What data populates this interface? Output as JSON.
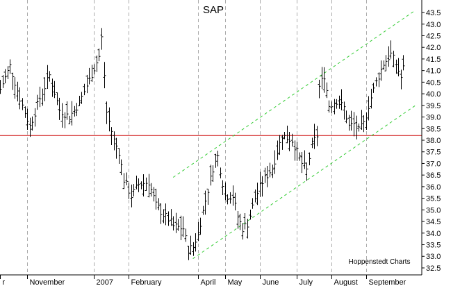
{
  "chart_data": {
    "type": "bar",
    "subtype": "ohlc-price-bars",
    "title": "SAP",
    "credit": "Hoppenstedt Charts",
    "xlabel": "",
    "ylabel": "",
    "ylim": [
      32.2,
      43.8
    ],
    "y_ticks": [
      "32.5",
      "33.0",
      "33.5",
      "34.0",
      "34.5",
      "35.0",
      "35.5",
      "36.0",
      "36.5",
      "37.0",
      "37.5",
      "38.0",
      "38.5",
      "39.0",
      "39.5",
      "40.0",
      "40.5",
      "41.0",
      "41.5",
      "42.0",
      "42.5",
      "43.0",
      "43.5"
    ],
    "x_ticks": [
      {
        "label": "r",
        "day": 0
      },
      {
        "label": "November",
        "day": 11
      },
      {
        "label": "2007",
        "day": 38
      },
      {
        "label": "February",
        "day": 52
      },
      {
        "label": "April",
        "day": 80
      },
      {
        "label": "May",
        "day": 91
      },
      {
        "label": "June",
        "day": 105
      },
      {
        "label": "July",
        "day": 120
      },
      {
        "label": "August",
        "day": 134
      },
      {
        "label": "September",
        "day": 148
      }
    ],
    "grid": "vertical dashed",
    "colors": {
      "bars": "#000000",
      "support_line": "#cc0000",
      "channel": "#33cc33",
      "grid": "#aaaaaa"
    },
    "support_line": {
      "value": 38.2
    },
    "channel": {
      "upper": {
        "start": [
          70,
          36.4
        ],
        "end": [
          168,
          43.6
        ]
      },
      "lower": {
        "start": [
          78,
          32.9
        ],
        "end": [
          168,
          39.5
        ]
      }
    },
    "x_range": [
      0,
      168
    ],
    "anchors": [
      [
        0,
        40.2
      ],
      [
        4,
        41.2
      ],
      [
        8,
        39.8
      ],
      [
        12,
        38.6
      ],
      [
        16,
        39.8
      ],
      [
        20,
        40.8
      ],
      [
        24,
        39.3
      ],
      [
        28,
        39.0
      ],
      [
        32,
        39.6
      ],
      [
        36,
        40.6
      ],
      [
        40,
        41.6
      ],
      [
        41,
        42.4
      ],
      [
        43,
        39.2
      ],
      [
        46,
        38.0
      ],
      [
        48,
        37.5
      ],
      [
        50,
        36.3
      ],
      [
        53,
        35.6
      ],
      [
        56,
        36.1
      ],
      [
        60,
        36.2
      ],
      [
        63,
        35.2
      ],
      [
        66,
        34.8
      ],
      [
        68,
        34.6
      ],
      [
        70,
        34.3
      ],
      [
        74,
        34.2
      ],
      [
        76,
        33.3
      ],
      [
        78,
        33.4
      ],
      [
        80,
        34.0
      ],
      [
        83,
        35.4
      ],
      [
        86,
        36.8
      ],
      [
        88,
        37.3
      ],
      [
        91,
        35.6
      ],
      [
        94,
        35.6
      ],
      [
        96,
        34.7
      ],
      [
        98,
        34.2
      ],
      [
        100,
        34.4
      ],
      [
        103,
        35.5
      ],
      [
        106,
        36.2
      ],
      [
        110,
        36.8
      ],
      [
        114,
        38.2
      ],
      [
        118,
        38.0
      ],
      [
        122,
        37.0
      ],
      [
        124,
        36.7
      ],
      [
        126,
        37.8
      ],
      [
        128,
        38.2
      ],
      [
        129,
        40.3
      ],
      [
        131,
        40.8
      ],
      [
        133,
        39.5
      ],
      [
        136,
        39.7
      ],
      [
        139,
        39.4
      ],
      [
        141,
        38.6
      ],
      [
        143,
        38.7
      ],
      [
        145,
        38.4
      ],
      [
        147,
        38.7
      ],
      [
        149,
        39.5
      ],
      [
        152,
        40.5
      ],
      [
        155,
        41.3
      ],
      [
        158,
        41.7
      ],
      [
        160,
        41.3
      ],
      [
        162,
        40.7
      ],
      [
        163,
        41.1
      ]
    ]
  }
}
